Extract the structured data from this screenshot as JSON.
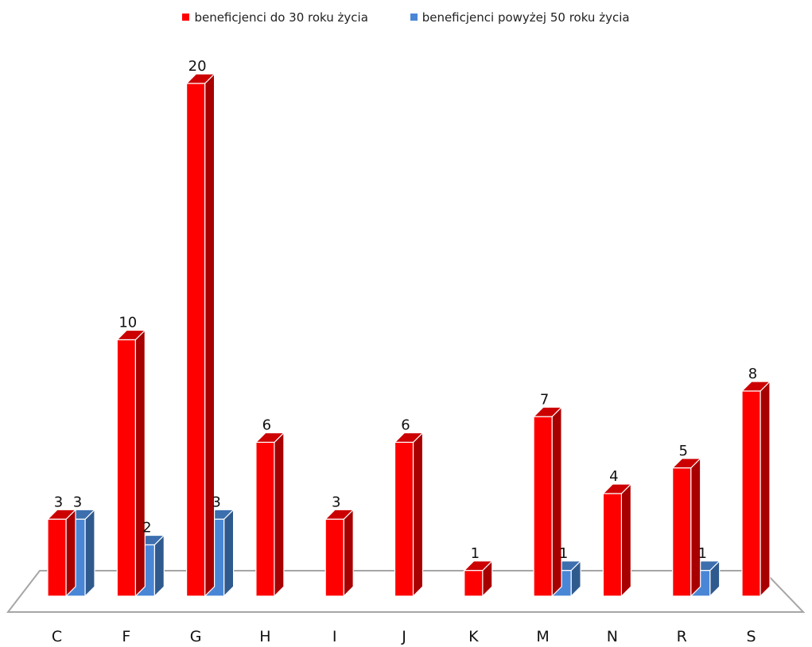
{
  "chart_data": {
    "type": "bar",
    "categories": [
      "C",
      "F",
      "G",
      "H",
      "I",
      "J",
      "K",
      "M",
      "N",
      "R",
      "S"
    ],
    "series": [
      {
        "name": "beneficjenci do 30 roku życia",
        "values": [
          3,
          10,
          20,
          6,
          3,
          6,
          1,
          7,
          4,
          5,
          8
        ],
        "color": "#ff0000"
      },
      {
        "name": "beneficjenci powyżej 50 roku życia",
        "values": [
          3,
          2,
          3,
          null,
          null,
          null,
          null,
          1,
          null,
          1,
          null
        ],
        "color": "#4a86d6"
      }
    ],
    "ylim": [
      0,
      20
    ],
    "grid": false,
    "legend": "top",
    "style": "3d-column"
  }
}
